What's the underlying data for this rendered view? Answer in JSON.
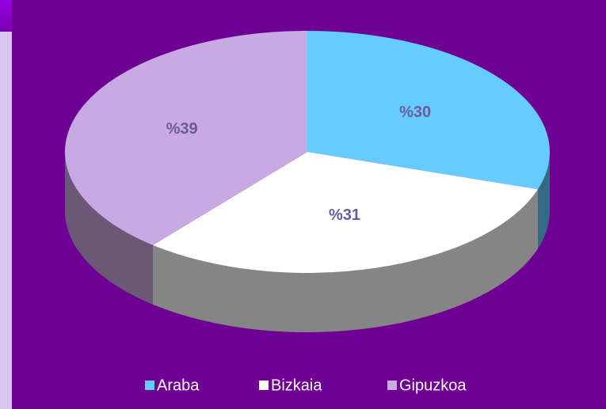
{
  "chart_data": {
    "type": "pie",
    "categories": [
      "Araba",
      "Bizkaia",
      "Gipuzkoa"
    ],
    "values": [
      30,
      31,
      39
    ],
    "value_labels": [
      "%30",
      "%31",
      "%39"
    ],
    "colors": [
      "#66ccff",
      "#ffffff",
      "#c9a9e3"
    ],
    "legend": "bottom"
  }
}
